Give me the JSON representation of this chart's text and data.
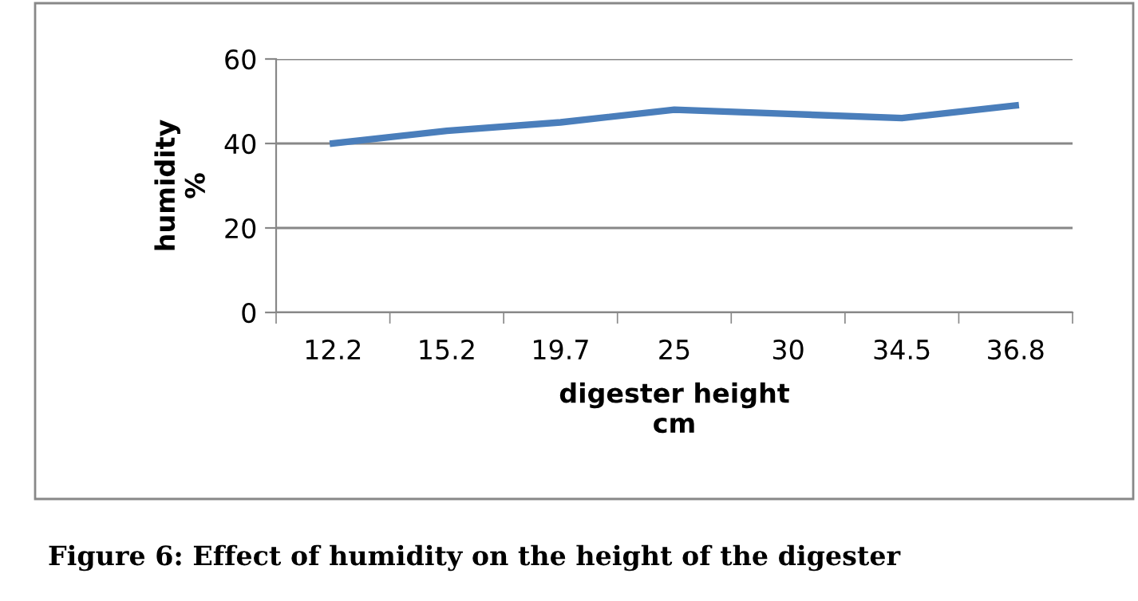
{
  "chart_data": {
    "type": "line",
    "xlabel": "digester height\ncm",
    "ylabel": "humidity\n%",
    "categories": [
      "12.2",
      "15.2",
      "19.7",
      "25",
      "30",
      "34.5",
      "36.8"
    ],
    "series": [
      {
        "color": "#4a7ebb",
        "values": [
          40,
          43,
          45,
          48,
          47,
          46,
          49
        ]
      }
    ],
    "ylim": [
      0,
      60
    ],
    "yticks": [
      0,
      20,
      40,
      60
    ],
    "grid": "y",
    "legend": false,
    "marker": "none",
    "line_style": "solid",
    "annotations": [
      "Figure 6: Effect of humidity on the height of the digester"
    ]
  }
}
